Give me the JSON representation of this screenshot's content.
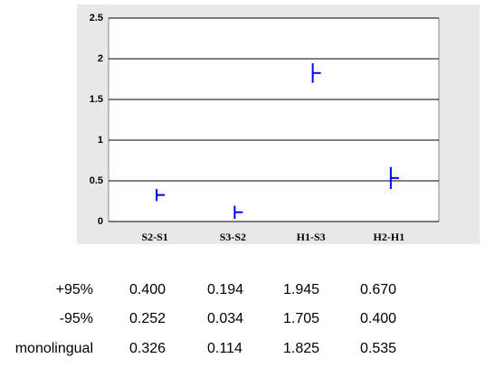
{
  "chart_data": {
    "type": "error",
    "categories": [
      "S2-S1",
      "S3-S2",
      "H1-S3",
      "H2-H1"
    ],
    "series": [
      {
        "name": "+95%",
        "color": "#0000ff",
        "values": [
          0.4,
          0.194,
          1.945,
          0.67
        ],
        "value_labels": [
          "0.400",
          "0.194",
          "1.945",
          "0.670"
        ]
      },
      {
        "name": "-95%",
        "color": "#0000ff",
        "values": [
          0.252,
          0.034,
          1.705,
          0.4
        ],
        "value_labels": [
          "0.252",
          "0.034",
          "1.705",
          "0.400"
        ]
      },
      {
        "name": "monolingual",
        "color": "#0000ff",
        "values": [
          0.326,
          0.114,
          1.825,
          0.535
        ],
        "value_labels": [
          "0.326",
          "0.114",
          "1.825",
          "0.535"
        ]
      }
    ],
    "ylim": [
      0,
      2.5
    ],
    "yticks": [
      0,
      0.5,
      1,
      1.5,
      2,
      2.5
    ],
    "grid": true
  }
}
